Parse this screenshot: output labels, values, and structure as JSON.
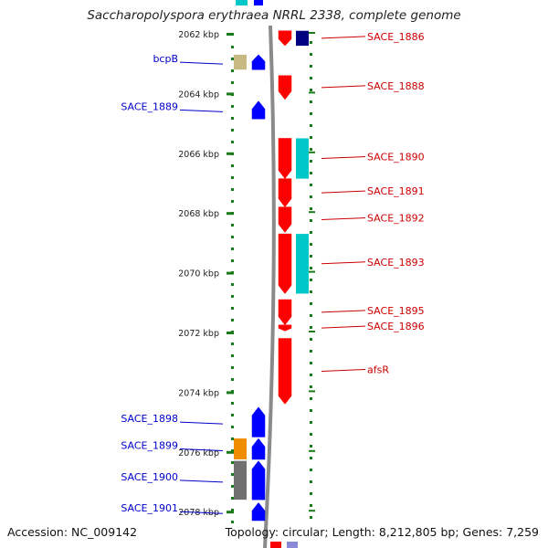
{
  "title": "Saccharopolyspora erythraea NRRL 2338, complete genome",
  "footer": {
    "accession": "Accession: NC_009142",
    "summary": "Topology: circular; Length: 8,212,805 bp; Genes: 7,259"
  },
  "colors": {
    "forward_gene": "#0000ff",
    "reverse_gene": "#ff0000",
    "forward_label": "#0000cc",
    "reverse_label": "#cc0000",
    "tick": "#1a7a1a",
    "backbone": "#8a8a8a",
    "cyan_feature": "#00c8c8",
    "orange_feature": "#f08c00",
    "gray_feature": "#707070",
    "tan_feature": "#c8b882",
    "navy_feature": "#000080"
  },
  "axis": {
    "unit": "kbp",
    "ticks": [
      2062,
      2064,
      2066,
      2068,
      2070,
      2072,
      2074,
      2076,
      2078
    ]
  },
  "genes": [
    {
      "name": "SACE_1886",
      "strand": "reverse",
      "start": 2061.9,
      "end": 2062.4,
      "color": "#ff0000"
    },
    {
      "name": "SACE_1888",
      "strand": "reverse",
      "start": 2063.4,
      "end": 2064.2,
      "color": "#ff0000"
    },
    {
      "name": "SACE_1890",
      "strand": "reverse",
      "start": 2065.5,
      "end": 2066.85,
      "color": "#ff0000"
    },
    {
      "name": "SACE_1891",
      "strand": "reverse",
      "start": 2066.85,
      "end": 2067.8,
      "color": "#ff0000"
    },
    {
      "name": "SACE_1892",
      "strand": "reverse",
      "start": 2067.8,
      "end": 2068.65,
      "color": "#ff0000"
    },
    {
      "name": "SACE_1893",
      "strand": "reverse",
      "start": 2068.7,
      "end": 2070.7,
      "color": "#ff0000"
    },
    {
      "name": "SACE_1895",
      "strand": "reverse",
      "start": 2070.9,
      "end": 2071.75,
      "color": "#ff0000"
    },
    {
      "name": "SACE_1896",
      "strand": "reverse",
      "start": 2071.75,
      "end": 2071.95,
      "color": "#ff0000"
    },
    {
      "name": "afsR",
      "strand": "reverse",
      "start": 2072.2,
      "end": 2074.4,
      "color": "#ff0000"
    },
    {
      "name": "bcpB",
      "strand": "forward",
      "start": 2062.7,
      "end": 2063.2,
      "color": "#0000ff"
    },
    {
      "name": "SACE_1889",
      "strand": "forward",
      "start": 2064.25,
      "end": 2064.85,
      "color": "#0000ff"
    },
    {
      "name": "SACE_1898",
      "strand": "forward",
      "start": 2074.5,
      "end": 2075.5,
      "color": "#0000ff"
    },
    {
      "name": "SACE_1899",
      "strand": "forward",
      "start": 2075.55,
      "end": 2076.25,
      "color": "#0000ff"
    },
    {
      "name": "SACE_1900",
      "strand": "forward",
      "start": 2076.3,
      "end": 2077.6,
      "color": "#0000ff"
    },
    {
      "name": "SACE_1901",
      "strand": "forward",
      "start": 2077.7,
      "end": 2078.3,
      "color": "#0000ff"
    }
  ],
  "features": [
    {
      "track": "outer_reverse",
      "start": 2061.9,
      "end": 2062.4,
      "color": "#000080"
    },
    {
      "track": "outer_reverse",
      "start": 2065.5,
      "end": 2066.85,
      "color": "#00c8c8"
    },
    {
      "track": "outer_reverse",
      "start": 2068.7,
      "end": 2070.7,
      "color": "#00c8c8"
    },
    {
      "track": "outer_forward",
      "start": 2062.7,
      "end": 2063.2,
      "color": "#c8b882"
    },
    {
      "track": "outer_forward",
      "start": 2075.55,
      "end": 2076.25,
      "color": "#f08c00"
    },
    {
      "track": "outer_forward",
      "start": 2076.3,
      "end": 2077.6,
      "color": "#707070"
    }
  ]
}
